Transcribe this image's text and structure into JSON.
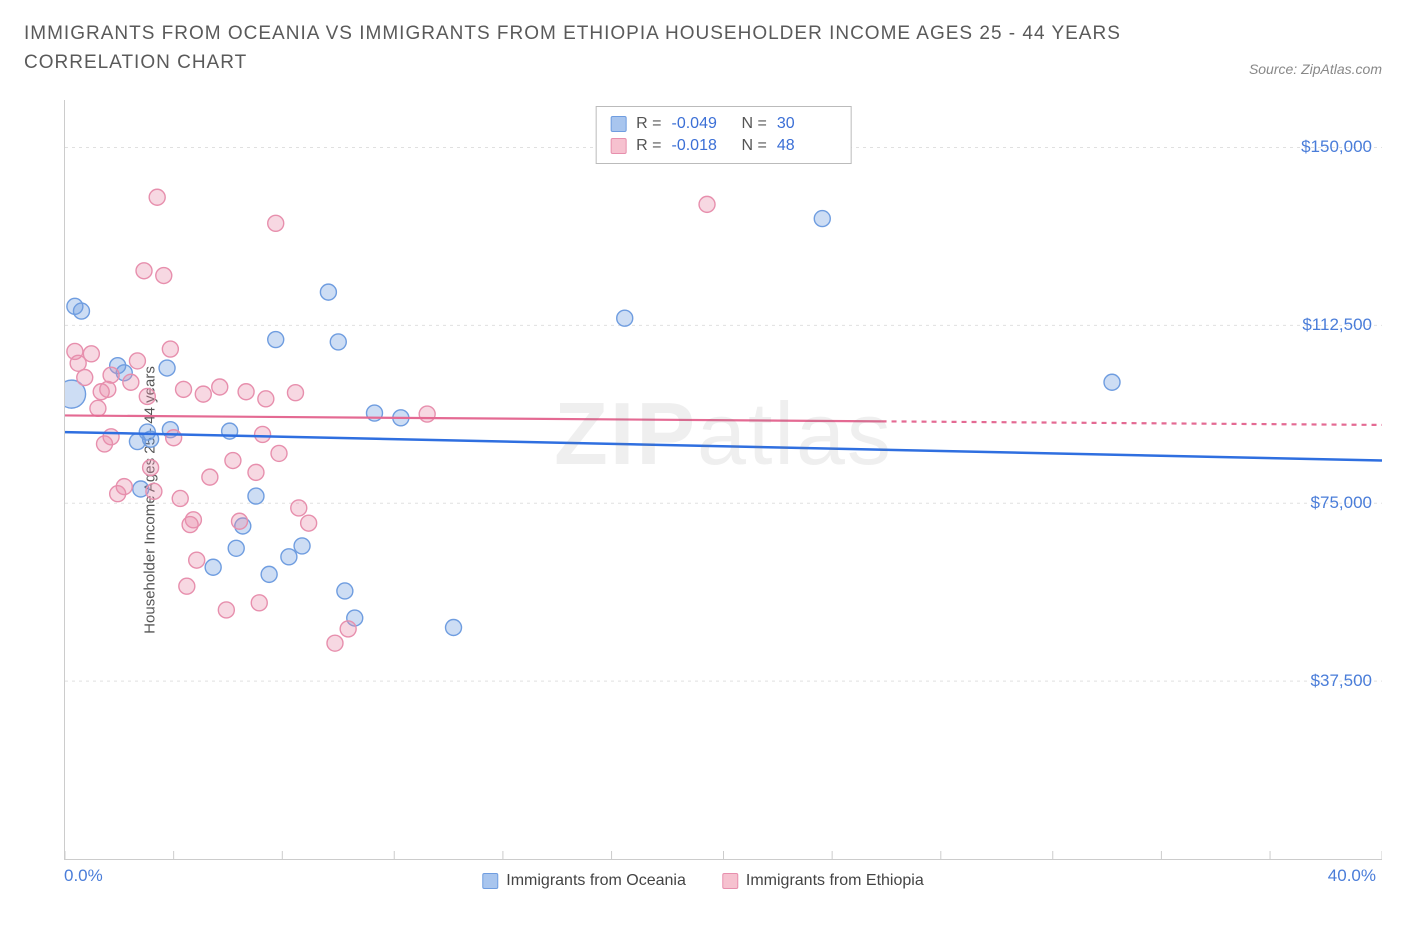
{
  "header": {
    "title": "IMMIGRANTS FROM OCEANIA VS IMMIGRANTS FROM ETHIOPIA HOUSEHOLDER INCOME AGES 25 - 44 YEARS CORRELATION CHART",
    "source": "Source: ZipAtlas.com"
  },
  "chart": {
    "type": "scatter",
    "ylabel": "Householder Income Ages 25 - 44 years",
    "background_color": "#ffffff",
    "grid_color": "#e0e0e0",
    "xlim": [
      0,
      40
    ],
    "ylim": [
      0,
      160000
    ],
    "x_tick_left": "0.0%",
    "x_tick_right": "40.0%",
    "x_ticks_pct": [
      0,
      3.3,
      6.6,
      10,
      13.3,
      16.6,
      20,
      23.3,
      26.6,
      30,
      33.3,
      36.6,
      40
    ],
    "y_gridlines": [
      37500,
      75000,
      112500,
      150000
    ],
    "y_tick_labels": [
      "$37,500",
      "$75,000",
      "$112,500",
      "$150,000"
    ],
    "watermark": {
      "prefix": "ZIP",
      "suffix": "atlas"
    },
    "legend_top": [
      {
        "color_fill": "#a8c5ee",
        "color_stroke": "#6f9de0",
        "r_label": "R =",
        "r_value": "-0.049",
        "n_label": "N =",
        "n_value": "30"
      },
      {
        "color_fill": "#f6c1cf",
        "color_stroke": "#e78fad",
        "r_label": "R =",
        "r_value": "-0.018",
        "n_label": "N =",
        "n_value": "48"
      }
    ],
    "legend_bottom": [
      {
        "label": "Immigrants from Oceania",
        "fill": "#a8c5ee",
        "stroke": "#6f9de0"
      },
      {
        "label": "Immigrants from Ethiopia",
        "fill": "#f6c1cf",
        "stroke": "#e78fad"
      }
    ],
    "series": [
      {
        "name": "oceania",
        "color_fill": "rgba(112,157,224,0.35)",
        "color_stroke": "#6f9de0",
        "marker_r": 8,
        "trend": {
          "y_at_xmin": 90000,
          "y_at_xmax": 84000,
          "stroke": "#2f6fe0",
          "width": 2.5,
          "dash_start_pct": 100
        },
        "r": -0.049,
        "n": 30,
        "points": [
          [
            0.3,
            116500
          ],
          [
            0.5,
            115500
          ],
          [
            0.2,
            98000,
            14
          ],
          [
            1.6,
            104000
          ],
          [
            1.8,
            102500
          ],
          [
            2.2,
            88000
          ],
          [
            2.5,
            90000
          ],
          [
            2.3,
            78000
          ],
          [
            2.6,
            88500
          ],
          [
            3.1,
            103500
          ],
          [
            3.2,
            90500
          ],
          [
            4.5,
            61500
          ],
          [
            5.0,
            90200
          ],
          [
            5.2,
            65500
          ],
          [
            5.4,
            70200
          ],
          [
            5.8,
            76500
          ],
          [
            6.2,
            60000
          ],
          [
            6.4,
            109500
          ],
          [
            6.8,
            63700
          ],
          [
            7.2,
            66000
          ],
          [
            8.0,
            119500
          ],
          [
            8.3,
            109000
          ],
          [
            8.8,
            50800
          ],
          [
            8.5,
            56500
          ],
          [
            9.4,
            94000
          ],
          [
            10.2,
            93000
          ],
          [
            11.8,
            48800
          ],
          [
            17.0,
            114000
          ],
          [
            23.0,
            135000
          ],
          [
            31.8,
            100500
          ]
        ]
      },
      {
        "name": "ethiopia",
        "color_fill": "rgba(231,143,173,0.35)",
        "color_stroke": "#e78fad",
        "marker_r": 8,
        "trend": {
          "y_at_xmin": 93500,
          "y_at_xmax": 91500,
          "stroke": "#e46a93",
          "width": 2.2,
          "dash_start_pct": 62
        },
        "r": -0.018,
        "n": 48,
        "points": [
          [
            0.3,
            107000
          ],
          [
            0.4,
            104500
          ],
          [
            0.6,
            101500
          ],
          [
            0.8,
            106500
          ],
          [
            1.0,
            95000
          ],
          [
            1.1,
            98500
          ],
          [
            1.2,
            87500
          ],
          [
            1.3,
            99000
          ],
          [
            1.4,
            102000
          ],
          [
            1.6,
            77000
          ],
          [
            1.8,
            78500
          ],
          [
            1.4,
            89000
          ],
          [
            2.0,
            100500
          ],
          [
            2.2,
            105000
          ],
          [
            2.4,
            124000
          ],
          [
            2.5,
            97500
          ],
          [
            2.6,
            82500
          ],
          [
            2.7,
            77500
          ],
          [
            2.8,
            139500
          ],
          [
            3.0,
            123000
          ],
          [
            3.2,
            107500
          ],
          [
            3.3,
            88800
          ],
          [
            3.5,
            76000
          ],
          [
            3.6,
            99000
          ],
          [
            3.7,
            57500
          ],
          [
            3.8,
            70500
          ],
          [
            3.9,
            71500
          ],
          [
            4.0,
            63000
          ],
          [
            4.2,
            98000
          ],
          [
            4.4,
            80500
          ],
          [
            4.7,
            99500
          ],
          [
            4.9,
            52500
          ],
          [
            5.1,
            84000
          ],
          [
            5.3,
            71200
          ],
          [
            5.5,
            98500
          ],
          [
            5.8,
            81500
          ],
          [
            5.9,
            54000
          ],
          [
            6.0,
            89500
          ],
          [
            6.1,
            97000
          ],
          [
            6.4,
            134000
          ],
          [
            6.5,
            85500
          ],
          [
            7.0,
            98300
          ],
          [
            7.1,
            74000
          ],
          [
            7.4,
            70800
          ],
          [
            8.2,
            45500
          ],
          [
            8.6,
            48500
          ],
          [
            11.0,
            93800
          ],
          [
            19.5,
            138000
          ]
        ]
      }
    ]
  }
}
